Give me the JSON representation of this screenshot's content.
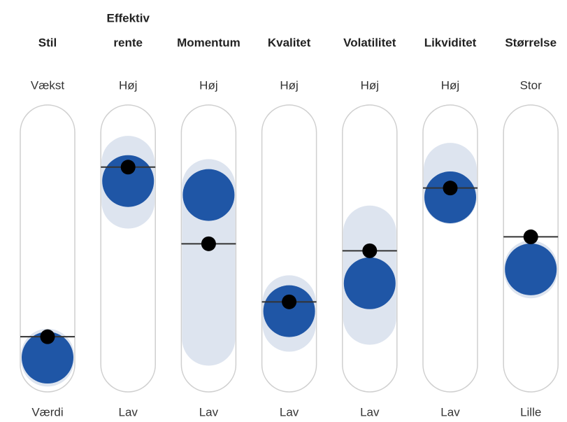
{
  "chart_data": {
    "type": "factor-profile",
    "ylim": [
      0,
      100
    ],
    "fund_color": "#1f56a6",
    "range_color": "#dde4ef",
    "benchmark_color": "#000000",
    "factors": [
      {
        "name": [
          "Stil"
        ],
        "high_label": "Vækst",
        "low_label": "Værdi",
        "fund": 3,
        "benchmark": 12,
        "range": [
          2,
          4
        ]
      },
      {
        "name": [
          "Effektiv",
          "rente"
        ],
        "high_label": "Høj",
        "low_label": "Lav",
        "fund": 79,
        "benchmark": 85,
        "range": [
          70,
          87
        ]
      },
      {
        "name": [
          "Momentum"
        ],
        "high_label": "Høj",
        "low_label": "Lav",
        "fund": 73,
        "benchmark": 52,
        "range": [
          11,
          77
        ]
      },
      {
        "name": [
          "Kvalitet"
        ],
        "high_label": "Høj",
        "low_label": "Lav",
        "fund": 23,
        "benchmark": 27,
        "range": [
          17,
          27
        ]
      },
      {
        "name": [
          "Volatilitet"
        ],
        "high_label": "Høj",
        "low_label": "Lav",
        "fund": 35,
        "benchmark": 49,
        "range": [
          20,
          57
        ]
      },
      {
        "name": [
          "Likviditet"
        ],
        "high_label": "Høj",
        "low_label": "Lav",
        "fund": 72,
        "benchmark": 76,
        "range": [
          72,
          84
        ]
      },
      {
        "name": [
          "Størrelse"
        ],
        "high_label": "Stor",
        "low_label": "Lille",
        "fund": 41,
        "benchmark": 55,
        "range": [
          40,
          42
        ]
      }
    ]
  }
}
